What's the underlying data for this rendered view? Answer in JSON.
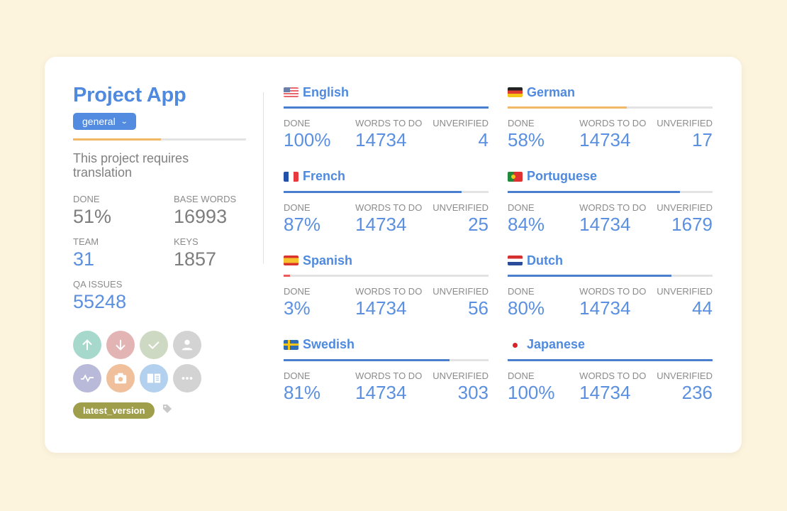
{
  "project": {
    "title": "Project App",
    "branch": "general",
    "progress_percent": 51,
    "description": "This project requires translation",
    "stats": [
      {
        "label": "DONE",
        "value": "51%",
        "accent": false
      },
      {
        "label": "BASE WORDS",
        "value": "16993",
        "accent": false
      },
      {
        "label": "TEAM",
        "value": "31",
        "accent": true
      },
      {
        "label": "KEYS",
        "value": "1857",
        "accent": false
      },
      {
        "label": "QA ISSUES",
        "value": "55248",
        "accent": true
      }
    ],
    "actions": [
      {
        "icon": "arrow-up-icon",
        "color": "#a6d9cc"
      },
      {
        "icon": "arrow-down-icon",
        "color": "#e2b4b4"
      },
      {
        "icon": "check-icon",
        "color": "#cdd9c2"
      },
      {
        "icon": "user-icon",
        "color": "#d3d3d3"
      },
      {
        "icon": "activity-icon",
        "color": "#b9b9d9"
      },
      {
        "icon": "camera-icon",
        "color": "#efc09b"
      },
      {
        "icon": "book-icon",
        "color": "#b3d0ee"
      },
      {
        "icon": "more-icon",
        "color": "#d3d3d3"
      }
    ],
    "tag": "latest_version"
  },
  "labels": {
    "done": "DONE",
    "words": "WORDS TO DO",
    "unverified": "UNVERIFIED"
  },
  "languages": [
    {
      "name": "English",
      "flag": "us",
      "done": "100%",
      "words": "14734",
      "unverified": "4",
      "progress": 100,
      "bar_color": "#4a7fcf"
    },
    {
      "name": "German",
      "flag": "de",
      "done": "58%",
      "words": "14734",
      "unverified": "17",
      "progress": 58,
      "bar_color": "#f2b865"
    },
    {
      "name": "French",
      "flag": "fr",
      "done": "87%",
      "words": "14734",
      "unverified": "25",
      "progress": 87,
      "bar_color": "#4a7fcf"
    },
    {
      "name": "Portuguese",
      "flag": "pt",
      "done": "84%",
      "words": "14734",
      "unverified": "1679",
      "progress": 84,
      "bar_color": "#4a7fcf"
    },
    {
      "name": "Spanish",
      "flag": "es",
      "done": "3%",
      "words": "14734",
      "unverified": "56",
      "progress": 3,
      "bar_color": "#ef5a5a"
    },
    {
      "name": "Dutch",
      "flag": "nl",
      "done": "80%",
      "words": "14734",
      "unverified": "44",
      "progress": 80,
      "bar_color": "#4a7fcf"
    },
    {
      "name": "Swedish",
      "flag": "se",
      "done": "81%",
      "words": "14734",
      "unverified": "303",
      "progress": 81,
      "bar_color": "#4a7fcf"
    },
    {
      "name": "Japanese",
      "flag": "jp",
      "done": "100%",
      "words": "14734",
      "unverified": "236",
      "progress": 100,
      "bar_color": "#4a7fcf"
    }
  ]
}
